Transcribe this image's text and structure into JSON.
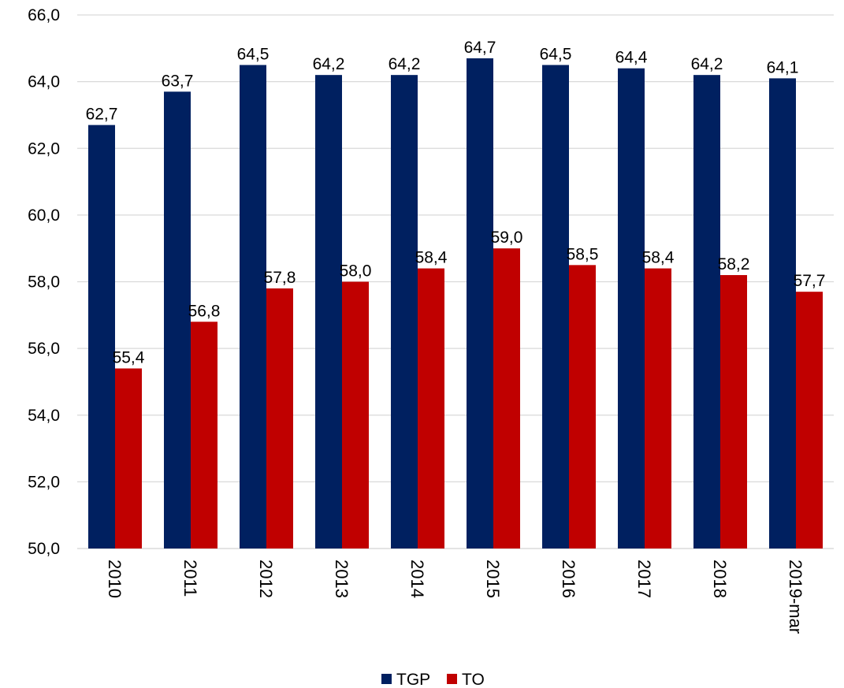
{
  "chart_data": {
    "type": "bar",
    "categories": [
      "2010",
      "2011",
      "2012",
      "2013",
      "2014",
      "2015",
      "2016",
      "2017",
      "2018",
      "2019-mar"
    ],
    "series": [
      {
        "name": "TGP",
        "color": "#002060",
        "values": [
          62.7,
          63.7,
          64.5,
          64.2,
          64.2,
          64.7,
          64.5,
          64.4,
          64.2,
          64.1
        ],
        "labels": [
          "62,7",
          "63,7",
          "64,5",
          "64,2",
          "64,2",
          "64,7",
          "64,5",
          "64,4",
          "64,2",
          "64,1"
        ]
      },
      {
        "name": "TO",
        "color": "#C00000",
        "values": [
          55.4,
          56.8,
          57.8,
          58.0,
          58.4,
          59.0,
          58.5,
          58.4,
          58.2,
          57.7
        ],
        "labels": [
          "55,4",
          "56,8",
          "57,8",
          "58,0",
          "58,4",
          "59,0",
          "58,5",
          "58,4",
          "58,2",
          "57,7"
        ]
      }
    ],
    "ylim": [
      50,
      66
    ],
    "yticks": [
      50,
      52,
      54,
      56,
      58,
      60,
      62,
      64,
      66
    ],
    "ytick_labels": [
      "50,0",
      "52,0",
      "54,0",
      "56,0",
      "58,0",
      "60,0",
      "62,0",
      "64,0",
      "66,0"
    ],
    "grid": true,
    "legend_position": "bottom",
    "title": "",
    "xlabel": "",
    "ylabel": ""
  }
}
